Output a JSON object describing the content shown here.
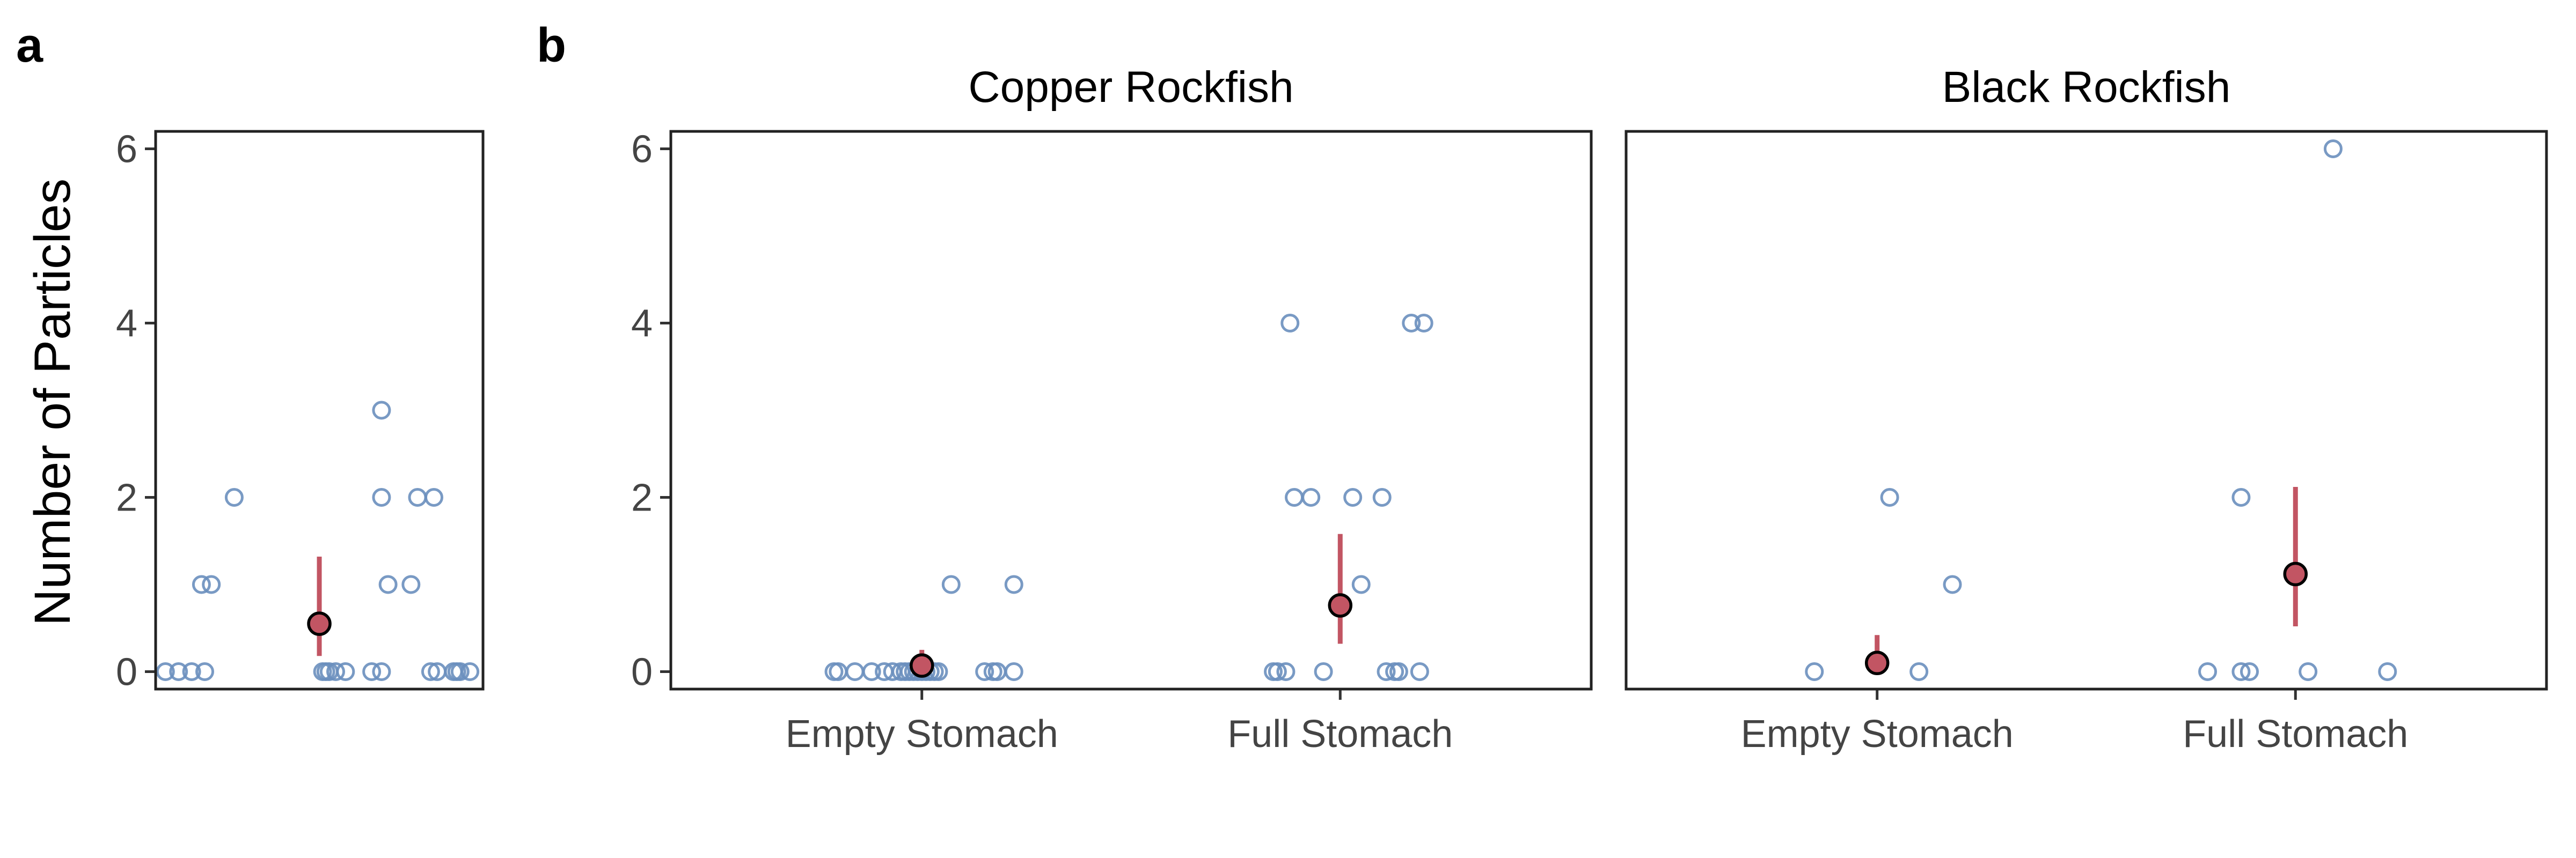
{
  "figure": {
    "panel_a_label": "a",
    "panel_b_label": "b",
    "ylabel": "Number of Particles"
  },
  "colors": {
    "points": "#6a8fbe",
    "mean_fill": "#c25563",
    "interval": "#c25563",
    "mean_stroke": "#000000",
    "frame": "#222222",
    "tick_text": "#444444"
  },
  "chart_data": [
    {
      "type": "scatter",
      "panel": "a",
      "title": "",
      "xlabel": "",
      "ylabel": "Number of Particles",
      "ylim": [
        -0.2,
        6.2
      ],
      "yticks": [
        0,
        2,
        4,
        6
      ],
      "xlim": [
        0,
        1
      ],
      "xticks": [],
      "grid": false,
      "points": [
        {
          "x": 0.03,
          "y": 0
        },
        {
          "x": 0.07,
          "y": 0
        },
        {
          "x": 0.11,
          "y": 0
        },
        {
          "x": 0.15,
          "y": 0
        },
        {
          "x": 0.51,
          "y": 0
        },
        {
          "x": 0.52,
          "y": 0
        },
        {
          "x": 0.53,
          "y": 0
        },
        {
          "x": 0.55,
          "y": 0
        },
        {
          "x": 0.58,
          "y": 0
        },
        {
          "x": 0.66,
          "y": 0
        },
        {
          "x": 0.69,
          "y": 0
        },
        {
          "x": 0.84,
          "y": 0
        },
        {
          "x": 0.86,
          "y": 0
        },
        {
          "x": 0.91,
          "y": 0
        },
        {
          "x": 0.92,
          "y": 0
        },
        {
          "x": 0.93,
          "y": 0
        },
        {
          "x": 0.96,
          "y": 0
        },
        {
          "x": 0.14,
          "y": 1
        },
        {
          "x": 0.17,
          "y": 1
        },
        {
          "x": 0.71,
          "y": 1
        },
        {
          "x": 0.78,
          "y": 1
        },
        {
          "x": 0.24,
          "y": 2
        },
        {
          "x": 0.69,
          "y": 2
        },
        {
          "x": 0.8,
          "y": 2
        },
        {
          "x": 0.85,
          "y": 2
        },
        {
          "x": 0.69,
          "y": 3
        }
      ],
      "summary": [
        {
          "x": 0.5,
          "mean": 0.55,
          "lower": 0.18,
          "upper": 1.32
        }
      ]
    },
    {
      "type": "scatter",
      "panel": "b",
      "title": "Copper Rockfish",
      "xlabel": "",
      "ylabel": "",
      "categories": [
        "Empty Stomach",
        "Full Stomach"
      ],
      "ylim": [
        -0.2,
        6.2
      ],
      "yticks": [
        0,
        2,
        4,
        6
      ],
      "grid": false,
      "points": [
        {
          "x": 0.79,
          "y": 0
        },
        {
          "x": 0.8,
          "y": 0
        },
        {
          "x": 0.84,
          "y": 0
        },
        {
          "x": 0.88,
          "y": 0
        },
        {
          "x": 0.91,
          "y": 0
        },
        {
          "x": 0.93,
          "y": 0
        },
        {
          "x": 0.95,
          "y": 0
        },
        {
          "x": 0.96,
          "y": 0
        },
        {
          "x": 0.97,
          "y": 0
        },
        {
          "x": 0.98,
          "y": 0
        },
        {
          "x": 0.99,
          "y": 0
        },
        {
          "x": 1.0,
          "y": 0
        },
        {
          "x": 1.01,
          "y": 0
        },
        {
          "x": 1.02,
          "y": 0
        },
        {
          "x": 1.03,
          "y": 0
        },
        {
          "x": 1.04,
          "y": 0
        },
        {
          "x": 1.15,
          "y": 0
        },
        {
          "x": 1.17,
          "y": 0
        },
        {
          "x": 1.18,
          "y": 0
        },
        {
          "x": 1.22,
          "y": 0
        },
        {
          "x": 1.07,
          "y": 1
        },
        {
          "x": 1.22,
          "y": 1
        },
        {
          "x": 1.84,
          "y": 0
        },
        {
          "x": 1.85,
          "y": 0
        },
        {
          "x": 1.87,
          "y": 0
        },
        {
          "x": 1.96,
          "y": 0
        },
        {
          "x": 2.11,
          "y": 0
        },
        {
          "x": 2.13,
          "y": 0
        },
        {
          "x": 2.14,
          "y": 0
        },
        {
          "x": 2.19,
          "y": 0
        },
        {
          "x": 2.05,
          "y": 1
        },
        {
          "x": 1.89,
          "y": 2
        },
        {
          "x": 1.93,
          "y": 2
        },
        {
          "x": 2.03,
          "y": 2
        },
        {
          "x": 2.1,
          "y": 2
        },
        {
          "x": 1.88,
          "y": 4
        },
        {
          "x": 2.17,
          "y": 4
        },
        {
          "x": 2.2,
          "y": 4
        }
      ],
      "summary": [
        {
          "x": 1,
          "mean": 0.07,
          "lower": 0.0,
          "upper": 0.25
        },
        {
          "x": 2,
          "mean": 0.76,
          "lower": 0.32,
          "upper": 1.58
        }
      ]
    },
    {
      "type": "scatter",
      "panel": "b",
      "title": "Black Rockfish",
      "xlabel": "",
      "ylabel": "",
      "categories": [
        "Empty Stomach",
        "Full Stomach"
      ],
      "ylim": [
        -0.2,
        6.2
      ],
      "yticks": [
        0,
        2,
        4,
        6
      ],
      "grid": false,
      "points": [
        {
          "x": 0.85,
          "y": 0
        },
        {
          "x": 1.1,
          "y": 0
        },
        {
          "x": 1.03,
          "y": 2
        },
        {
          "x": 1.18,
          "y": 1
        },
        {
          "x": 1.79,
          "y": 0
        },
        {
          "x": 1.87,
          "y": 0
        },
        {
          "x": 1.89,
          "y": 0
        },
        {
          "x": 2.03,
          "y": 0
        },
        {
          "x": 2.22,
          "y": 0
        },
        {
          "x": 1.87,
          "y": 2
        },
        {
          "x": 2.09,
          "y": 6
        }
      ],
      "summary": [
        {
          "x": 1,
          "mean": 0.1,
          "lower": 0.0,
          "upper": 0.42
        },
        {
          "x": 2,
          "mean": 1.12,
          "lower": 0.52,
          "upper": 2.12
        }
      ]
    }
  ]
}
